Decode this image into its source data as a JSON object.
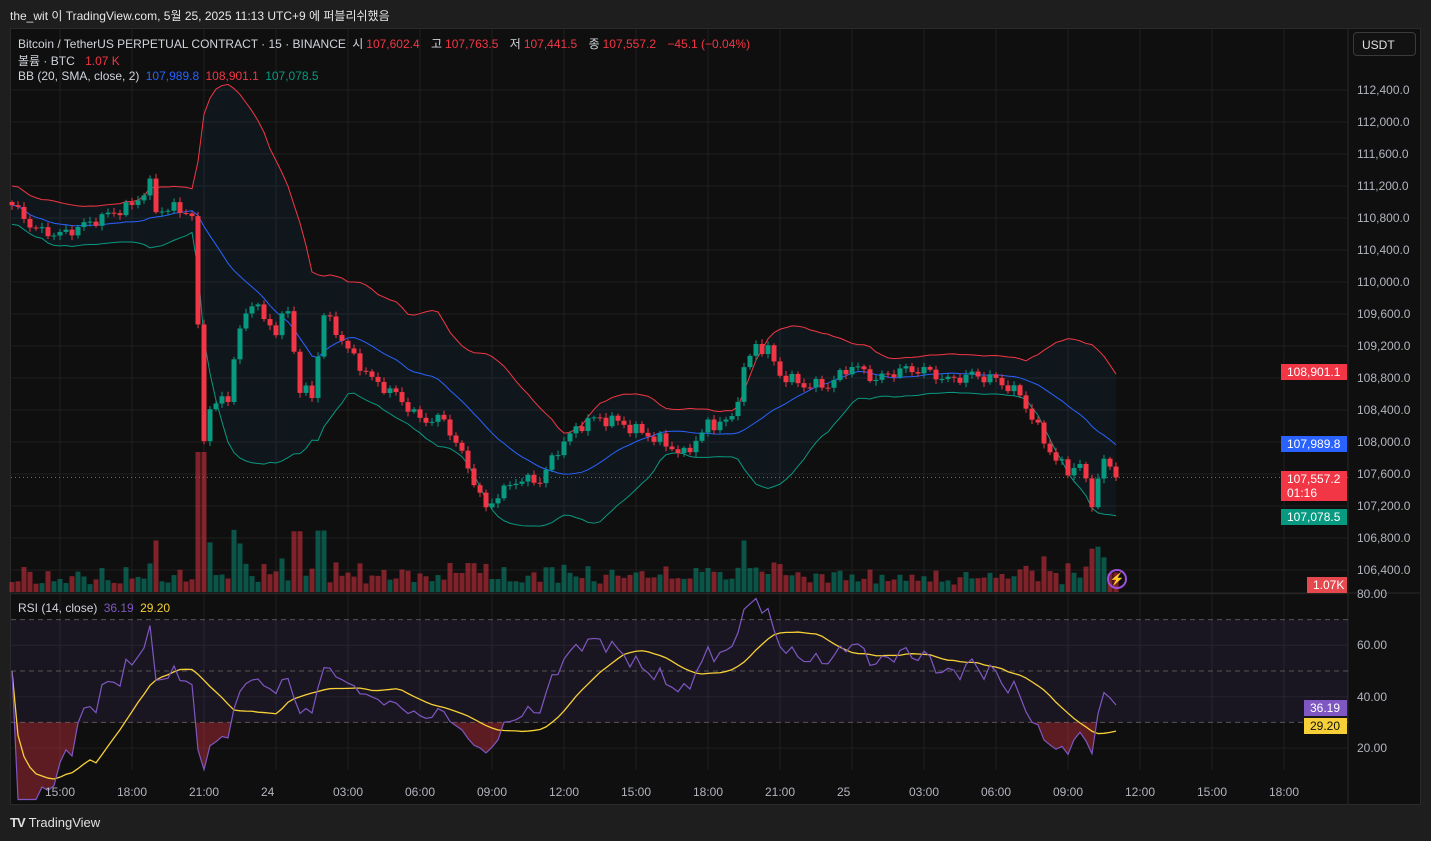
{
  "header": {
    "published": "the_wit 이 TradingView.com, 5월 25, 2025 11:13 UTC+9 에 퍼블리쉬했음"
  },
  "legend": {
    "symbol": "Bitcoin / TetherUS PERPETUAL CONTRACT · 15 · BINANCE",
    "open_label": "시",
    "open": "107,602.4",
    "high_label": "고",
    "high": "107,763.5",
    "low_label": "저",
    "low": "107,441.5",
    "close_label": "종",
    "close": "107,557.2",
    "change": "−45.1 (−0.04%)",
    "volume_label": "볼륨 · BTC",
    "volume": "1.07 K",
    "bb_label": "BB (20, SMA, close, 2)",
    "bb_basis": "107,989.8",
    "bb_upper": "108,901.1",
    "bb_lower": "107,078.5",
    "rsi_label": "RSI (14, close)",
    "rsi": "36.19",
    "rsi_ma": "29.20"
  },
  "currency_button": "USDT",
  "price_tags": {
    "bb_upper": "108,901.1",
    "bb_basis": "107,989.8",
    "last": "107,557.2",
    "countdown": "01:16",
    "bb_lower": "107,078.5",
    "volume": "1.07K",
    "rsi": "36.19",
    "rsi_ma": "29.20"
  },
  "colors": {
    "up": "#089981",
    "down": "#f23645",
    "bb_basis": "#2962ff",
    "bb_upper": "#f23645",
    "bb_lower": "#089981",
    "rsi": "#7e57c2",
    "rsi_ma": "#f7d038"
  },
  "logo": "TradingView",
  "chart_data": {
    "type": "candlestick",
    "title": "Bitcoin / TetherUS PERPETUAL CONTRACT · 15 · BINANCE",
    "interval_minutes": 15,
    "start": "May 23 13:00",
    "close_keypoints_hours_price": [
      [
        0,
        110960
      ],
      [
        1,
        110650
      ],
      [
        2,
        110590
      ],
      [
        3,
        110710
      ],
      [
        4,
        110840
      ],
      [
        5,
        110960
      ],
      [
        5.75,
        111210
      ],
      [
        6,
        110900
      ],
      [
        7,
        110920
      ],
      [
        7.5,
        110820
      ],
      [
        7.75,
        109400
      ],
      [
        8,
        108090
      ],
      [
        8.25,
        108400
      ],
      [
        9,
        108590
      ],
      [
        9.5,
        109400
      ],
      [
        10,
        109780
      ],
      [
        10.5,
        109530
      ],
      [
        11,
        109400
      ],
      [
        11.5,
        109650
      ],
      [
        12,
        108650
      ],
      [
        12.5,
        108590
      ],
      [
        13,
        109590
      ],
      [
        13.5,
        109400
      ],
      [
        14,
        109150
      ],
      [
        15,
        108780
      ],
      [
        16,
        108590
      ],
      [
        17,
        108280
      ],
      [
        18,
        108280
      ],
      [
        19,
        107690
      ],
      [
        19.75,
        107150
      ],
      [
        20,
        107270
      ],
      [
        21,
        107520
      ],
      [
        22,
        107520
      ],
      [
        23,
        108020
      ],
      [
        24,
        108280
      ],
      [
        25,
        108280
      ],
      [
        26,
        108150
      ],
      [
        27,
        108020
      ],
      [
        28,
        107840
      ],
      [
        29,
        108210
      ],
      [
        30,
        108280
      ],
      [
        30.5,
        108900
      ],
      [
        31,
        109210
      ],
      [
        31.5,
        109150
      ],
      [
        32,
        108840
      ],
      [
        33,
        108710
      ],
      [
        34,
        108710
      ],
      [
        35,
        108960
      ],
      [
        36,
        108780
      ],
      [
        37,
        108900
      ],
      [
        38,
        108900
      ],
      [
        39,
        108770
      ],
      [
        40,
        108840
      ],
      [
        41,
        108780
      ],
      [
        42,
        108590
      ],
      [
        43,
        108020
      ],
      [
        43.5,
        107770
      ],
      [
        44,
        107650
      ],
      [
        44.5,
        107710
      ],
      [
        45,
        107270
      ],
      [
        45.5,
        107770
      ],
      [
        46,
        107557.2
      ]
    ],
    "price_axis": [
      "112,400.0",
      "112,000.0",
      "111,600.0",
      "111,200.0",
      "110,800.0",
      "110,400.0",
      "110,000.0",
      "109,600.0",
      "109,200.0",
      "108,800.0",
      "108,400.0",
      "108,000.0",
      "107,600.0",
      "107,200.0",
      "106,800.0",
      "106,400.0"
    ],
    "price_axis_values": [
      112400,
      112000,
      111600,
      111200,
      110800,
      110400,
      110000,
      109600,
      109200,
      108800,
      108400,
      108000,
      107600,
      107200,
      106800,
      106400
    ],
    "rsi_axis": [
      "80.00",
      "60.00",
      "40.00",
      "20.00"
    ],
    "rsi_axis_values": [
      80,
      60,
      40,
      20
    ],
    "rsi_bands": [
      70,
      50,
      30
    ],
    "time_axis": [
      "15:00",
      "18:00",
      "21:00",
      "24",
      "03:00",
      "06:00",
      "09:00",
      "12:00",
      "15:00",
      "18:00",
      "21:00",
      "25",
      "03:00",
      "06:00",
      "09:00",
      "12:00",
      "15:00",
      "18:00"
    ],
    "time_axis_hours": [
      2,
      5,
      8,
      11,
      14,
      17,
      20,
      23,
      26,
      29,
      32,
      35,
      38,
      41,
      44,
      47,
      50,
      53
    ],
    "bb": {
      "length": 20,
      "mult": 2,
      "basis": 107989.8,
      "upper": 108901.1,
      "lower": 107078.5
    },
    "rsi": {
      "length": 14,
      "value": 36.19,
      "ma": 29.2
    },
    "last_price": 107557.2
  }
}
